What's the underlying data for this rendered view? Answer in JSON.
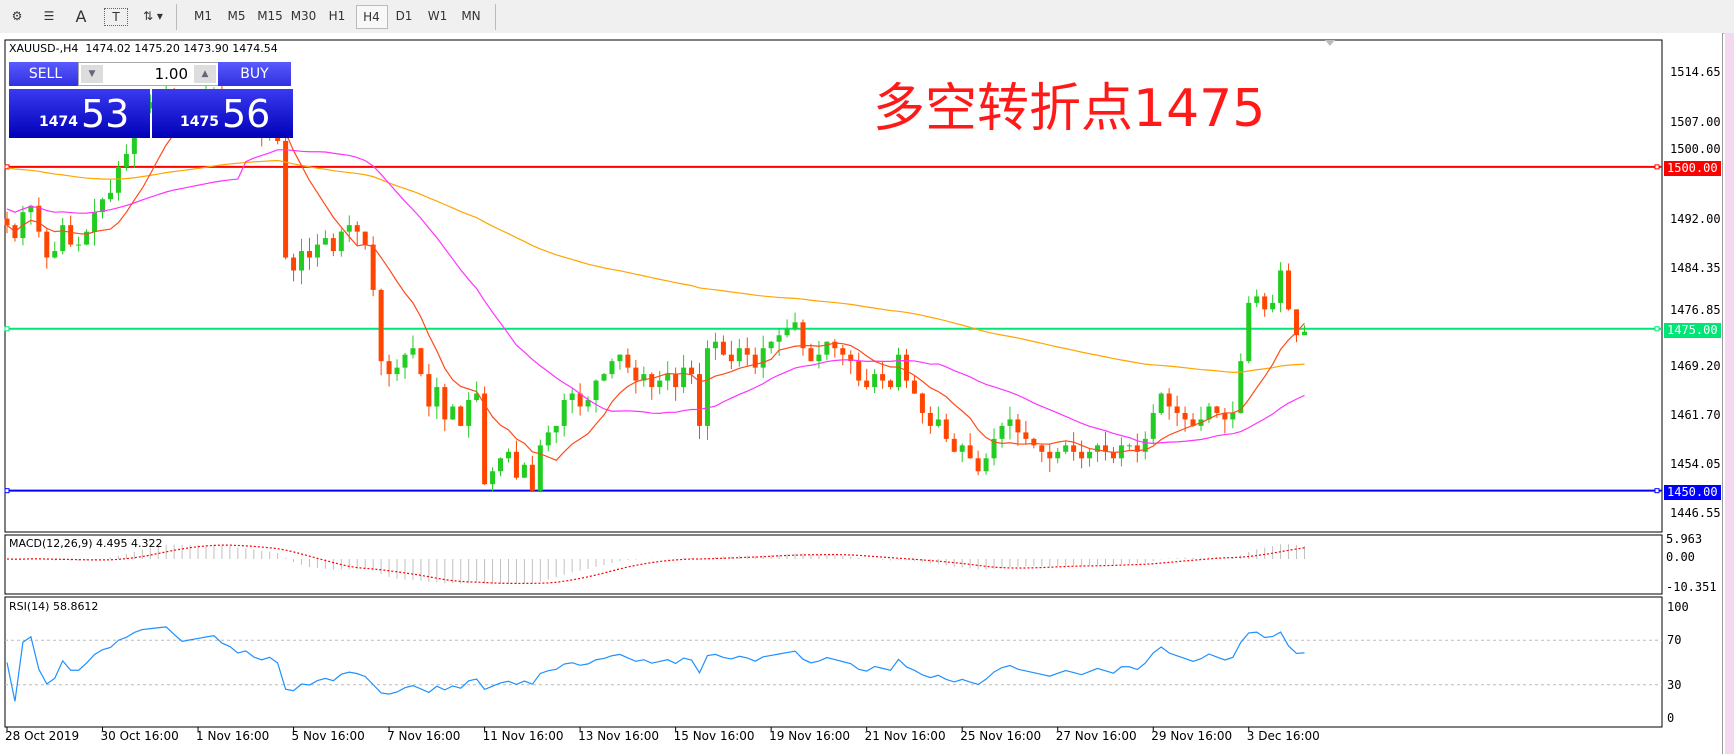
{
  "toolbar": {
    "tools": [
      "expert-icon",
      "fibo-icon",
      "text-icon",
      "text-label-icon",
      "arrows-icon"
    ],
    "text_tool": "A",
    "timeframes": [
      "M1",
      "M5",
      "M15",
      "M30",
      "H1",
      "H4",
      "D1",
      "W1",
      "MN"
    ],
    "active_timeframe": "H4"
  },
  "chart": {
    "info": "XAUUSD-,H4  1474.02 1475.20 1473.90 1474.54",
    "annotation": "多空转折点1475",
    "trade_panel": {
      "sell": "SELL",
      "buy": "BUY",
      "lot": "1.00",
      "bid_small": "1474",
      "bid_big": "53",
      "ask_small": "1475",
      "ask_big": "56"
    },
    "price_axis": [
      "1514.65",
      "1507.00",
      "1500.00",
      "1492.00",
      "1484.35",
      "1476.85",
      "1469.20",
      "1461.70",
      "1454.05",
      "1446.55"
    ],
    "levels": [
      {
        "price": 1500,
        "label": "1500.00",
        "color": "#ff0000"
      },
      {
        "price": 1475,
        "label": "1475.00",
        "color": "#00e676"
      },
      {
        "price": 1450,
        "label": "1450.00",
        "color": "#0000ff"
      }
    ],
    "colors": {
      "bull": "#22cc22",
      "bear": "#ff4500",
      "ma_fast": "#ff4a1a",
      "ma_mid": "#ff33ff",
      "ma_slow": "#ffa500",
      "rsi": "#1e90ff",
      "macd_signal": "#ff0000"
    },
    "closes": [
      1491,
      1489,
      1493,
      1494,
      1490,
      1486,
      1487,
      1491,
      1488,
      1488,
      1490,
      1493,
      1495,
      1496,
      1500,
      1502,
      1506,
      1509,
      1510,
      1511,
      1512,
      1510,
      1508,
      1509,
      1510,
      1511,
      1512,
      1510,
      1509,
      1507,
      1508,
      1506,
      1505,
      1506,
      1504,
      1486,
      1484,
      1487,
      1486,
      1488,
      1489,
      1487,
      1490,
      1491,
      1490,
      1488,
      1481,
      1470,
      1468,
      1469,
      1471,
      1472,
      1468,
      1463,
      1466,
      1461,
      1463,
      1460,
      1464,
      1465,
      1451,
      1453,
      1455,
      1456,
      1452,
      1454,
      1450,
      1457,
      1459,
      1460,
      1464,
      1465,
      1463,
      1464,
      1467,
      1468,
      1470,
      1471,
      1469,
      1467,
      1468,
      1466,
      1467,
      1468,
      1466,
      1469,
      1468,
      1460,
      1472,
      1473,
      1471,
      1470,
      1472,
      1471,
      1469,
      1472,
      1473,
      1474,
      1475,
      1476,
      1472,
      1470,
      1471,
      1473,
      1472,
      1471,
      1470,
      1467,
      1466,
      1468,
      1467,
      1466,
      1471,
      1467,
      1465,
      1462,
      1460,
      1461,
      1458,
      1456,
      1457,
      1455,
      1453,
      1455,
      1458,
      1460,
      1461,
      1459,
      1458,
      1457,
      1456,
      1455,
      1456,
      1457,
      1456,
      1455,
      1456,
      1457,
      1456,
      1455,
      1457,
      1457,
      1456,
      1458,
      1462,
      1465,
      1463,
      1462,
      1461,
      1460,
      1461,
      1463,
      1462,
      1461,
      1462,
      1470,
      1479,
      1480,
      1478,
      1479,
      1484,
      1478,
      1474,
      1474.54
    ],
    "dates": [
      "28 Oct 2019",
      "30 Oct 16:00",
      "1 Nov 16:00",
      "5 Nov 16:00",
      "7 Nov 16:00",
      "11 Nov 16:00",
      "13 Nov 16:00",
      "15 Nov 16:00",
      "19 Nov 16:00",
      "21 Nov 16:00",
      "25 Nov 16:00",
      "27 Nov 16:00",
      "29 Nov 16:00",
      "3 Dec 16:00"
    ]
  },
  "macd": {
    "label": "MACD(12,26,9) 4.495 4.322",
    "axis": [
      "5.963",
      "0.00",
      "-10.351"
    ]
  },
  "rsi": {
    "label": "RSI(14) 58.8612",
    "axis": [
      "100",
      "70",
      "30",
      "0"
    ]
  }
}
